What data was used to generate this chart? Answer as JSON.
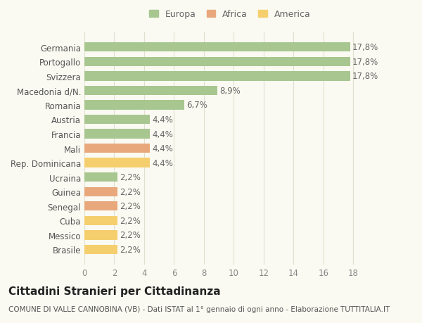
{
  "categories": [
    "Brasile",
    "Messico",
    "Cuba",
    "Senegal",
    "Guinea",
    "Ucraina",
    "Rep. Dominicana",
    "Mali",
    "Francia",
    "Austria",
    "Romania",
    "Macedonia d/N.",
    "Svizzera",
    "Portogallo",
    "Germania"
  ],
  "values": [
    2.2,
    2.2,
    2.2,
    2.2,
    2.2,
    2.2,
    4.4,
    4.4,
    4.4,
    4.4,
    6.7,
    8.9,
    17.8,
    17.8,
    17.8
  ],
  "colors": [
    "#f5cf6e",
    "#f5cf6e",
    "#f5cf6e",
    "#e8a87c",
    "#e8a87c",
    "#a8c68f",
    "#f5cf6e",
    "#e8a87c",
    "#a8c68f",
    "#a8c68f",
    "#a8c68f",
    "#a8c68f",
    "#a8c68f",
    "#a8c68f",
    "#a8c68f"
  ],
  "labels": [
    "2,2%",
    "2,2%",
    "2,2%",
    "2,2%",
    "2,2%",
    "2,2%",
    "4,4%",
    "4,4%",
    "4,4%",
    "4,4%",
    "6,7%",
    "8,9%",
    "17,8%",
    "17,8%",
    "17,8%"
  ],
  "legend": [
    {
      "label": "Europa",
      "color": "#a8c68f"
    },
    {
      "label": "Africa",
      "color": "#e8a87c"
    },
    {
      "label": "America",
      "color": "#f5cf6e"
    }
  ],
  "xlim": [
    0,
    19.5
  ],
  "xticks": [
    0,
    2,
    4,
    6,
    8,
    10,
    12,
    14,
    16,
    18
  ],
  "title": "Cittadini Stranieri per Cittadinanza",
  "subtitle": "COMUNE DI VALLE CANNOBINA (VB) - Dati ISTAT al 1° gennaio di ogni anno - Elaborazione TUTTITALIA.IT",
  "background_color": "#fafaf2",
  "bar_height": 0.65,
  "grid_color": "#e0e0d0",
  "label_fontsize": 8.5,
  "tick_fontsize": 8.5,
  "title_fontsize": 11,
  "subtitle_fontsize": 7.5
}
